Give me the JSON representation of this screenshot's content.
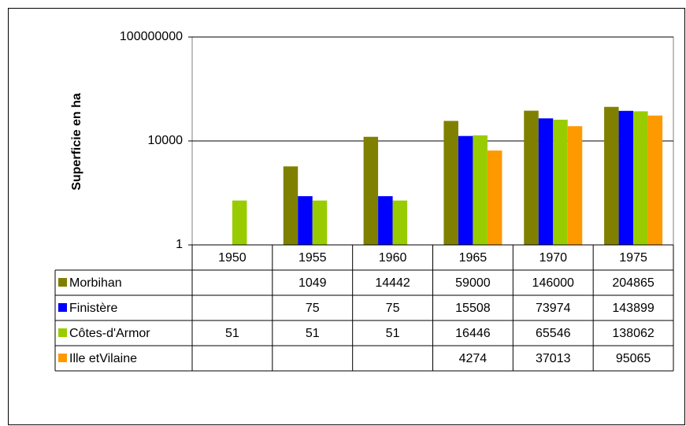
{
  "chart_data": {
    "type": "bar",
    "y_label": "Superficie en ha",
    "categories": [
      "1950",
      "1955",
      "1960",
      "1965",
      "1970",
      "1975"
    ],
    "series": [
      {
        "name": "Morbihan",
        "color": "#808000",
        "values": [
          null,
          1049,
          14442,
          59000,
          146000,
          204865
        ]
      },
      {
        "name": "Finistère",
        "color": "#0000ff",
        "values": [
          null,
          75,
          75,
          15508,
          73974,
          143899
        ]
      },
      {
        "name": "Côtes-d'Armor",
        "color": "#99cc00",
        "values": [
          51,
          51,
          51,
          16446,
          65546,
          138062
        ]
      },
      {
        "name": "Ille etVilaine",
        "color": "#ff9900",
        "values": [
          null,
          null,
          null,
          4274,
          37013,
          95065
        ]
      }
    ],
    "ylim": [
      1,
      100000000
    ],
    "yticks": [
      1,
      10000,
      100000000
    ],
    "log_scale": true,
    "grid": true
  }
}
